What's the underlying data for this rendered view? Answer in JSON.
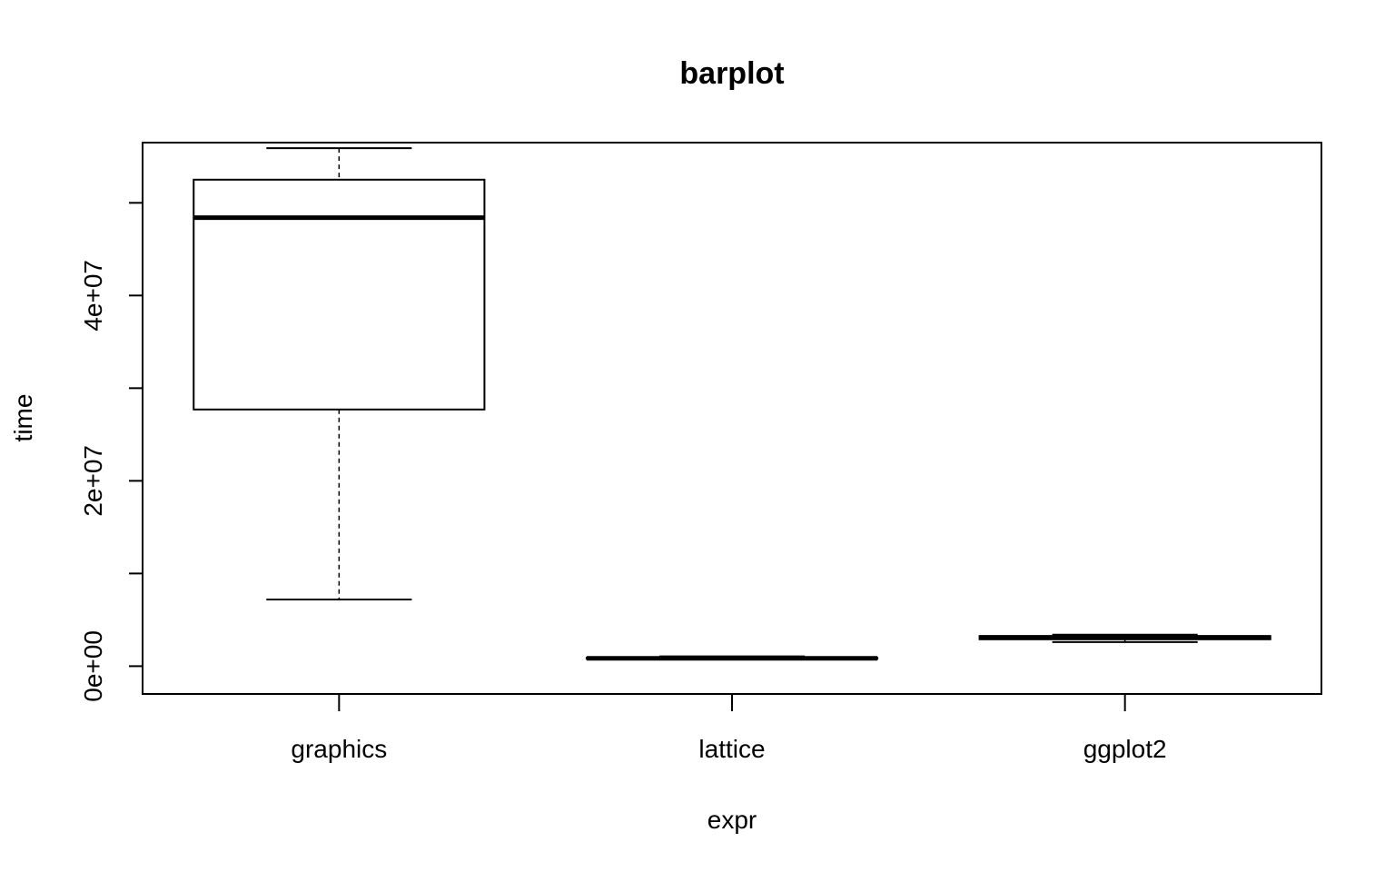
{
  "chart_data": {
    "type": "boxplot",
    "title": "barplot",
    "xlabel": "expr",
    "ylabel": "time",
    "ylim": [
      -3000000,
      56500000
    ],
    "y_ticks": [
      0,
      10000000,
      20000000,
      30000000,
      40000000,
      50000000
    ],
    "y_tick_labels": [
      "0e+00",
      "",
      "2e+07",
      "",
      "4e+07",
      ""
    ],
    "grid": false,
    "legend": "none",
    "categories": [
      "graphics",
      "lattice",
      "ggplot2"
    ],
    "series": [
      {
        "category": "graphics",
        "whisker_low": 7200000,
        "q1": 27700000,
        "median": 48400000,
        "q3": 52500000,
        "whisker_high": 55900000
      },
      {
        "category": "lattice",
        "whisker_low": 750000,
        "q1": 800000,
        "median": 850000,
        "q3": 900000,
        "whisker_high": 1050000
      },
      {
        "category": "ggplot2",
        "whisker_low": 2600000,
        "q1": 2900000,
        "median": 3100000,
        "q3": 3250000,
        "whisker_high": 3400000
      }
    ],
    "colors": {
      "stroke": "#000000",
      "background": "#ffffff"
    }
  }
}
